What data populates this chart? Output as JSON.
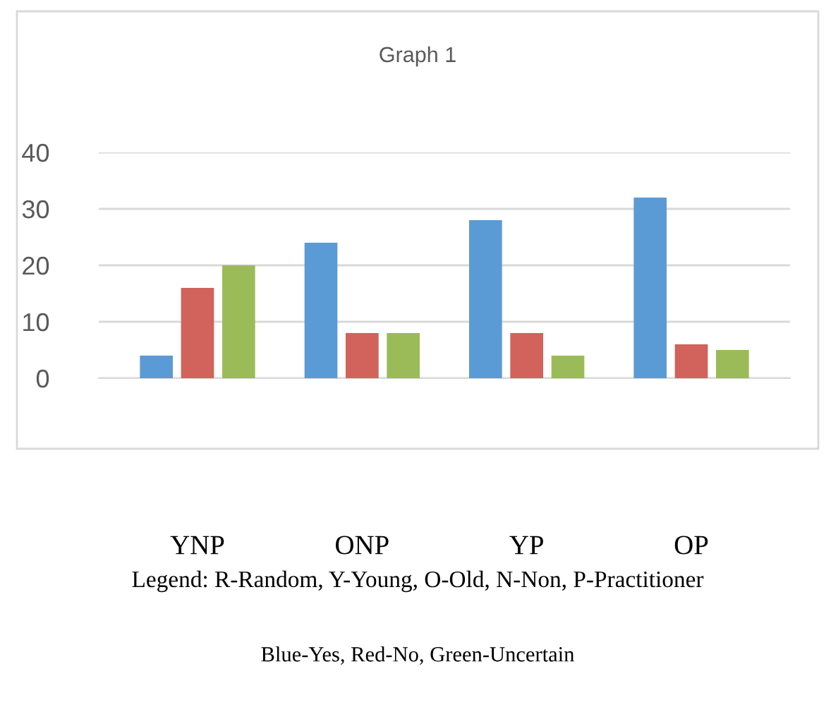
{
  "chart_data": {
    "type": "bar",
    "title": "Graph 1",
    "categories": [
      "YNP",
      "ONP",
      "YP",
      "OP"
    ],
    "series": [
      {
        "color": "#5b9bd5",
        "values": [
          4,
          24,
          28,
          32
        ]
      },
      {
        "color": "#d2625c",
        "values": [
          16,
          8,
          8,
          6
        ]
      },
      {
        "color": "#9bbb59",
        "values": [
          20,
          8,
          4,
          5
        ]
      }
    ],
    "ylim": [
      0,
      40
    ],
    "yticks": [
      0,
      10,
      20,
      30,
      40
    ],
    "grid": "y",
    "legend": false,
    "annotations": [
      "Legend: R-Random, Y-Young, O-Old, N-Non, P-Practitioner",
      "Blue-Yes, Red-No, Green-Uncertain"
    ]
  }
}
